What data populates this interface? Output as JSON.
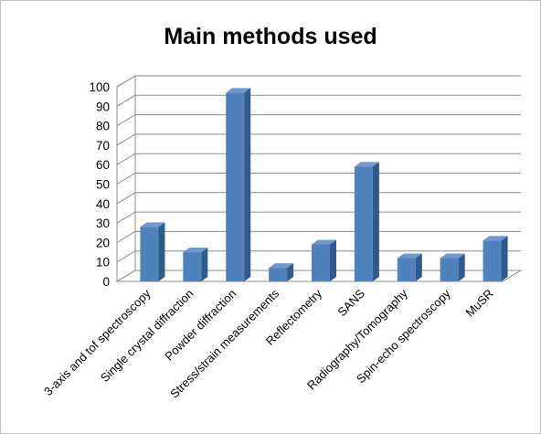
{
  "chart_data": {
    "type": "bar",
    "style": "3d-column",
    "title": "Main methods used",
    "categories": [
      "3-axis and tof spectroscopy",
      "Single crystal diffraction",
      "Powder diffraction",
      "Stress/strain measurements",
      "Reflectometry",
      "SANS",
      "Radiography/Tomography",
      "Spin-echo spectroscopy",
      "MuSR"
    ],
    "values": [
      28,
      15,
      97,
      7,
      19,
      59,
      12,
      12,
      21
    ],
    "ylim": [
      0,
      100
    ],
    "yticks": [
      0,
      10,
      20,
      30,
      40,
      50,
      60,
      70,
      80,
      90,
      100
    ],
    "grid": true,
    "legend": "none",
    "colors": {
      "bar_front": "#4f81bd",
      "bar_side": "#2e5a8e",
      "bar_top": "#6f98cf",
      "grid": "#8c8c8c"
    }
  }
}
